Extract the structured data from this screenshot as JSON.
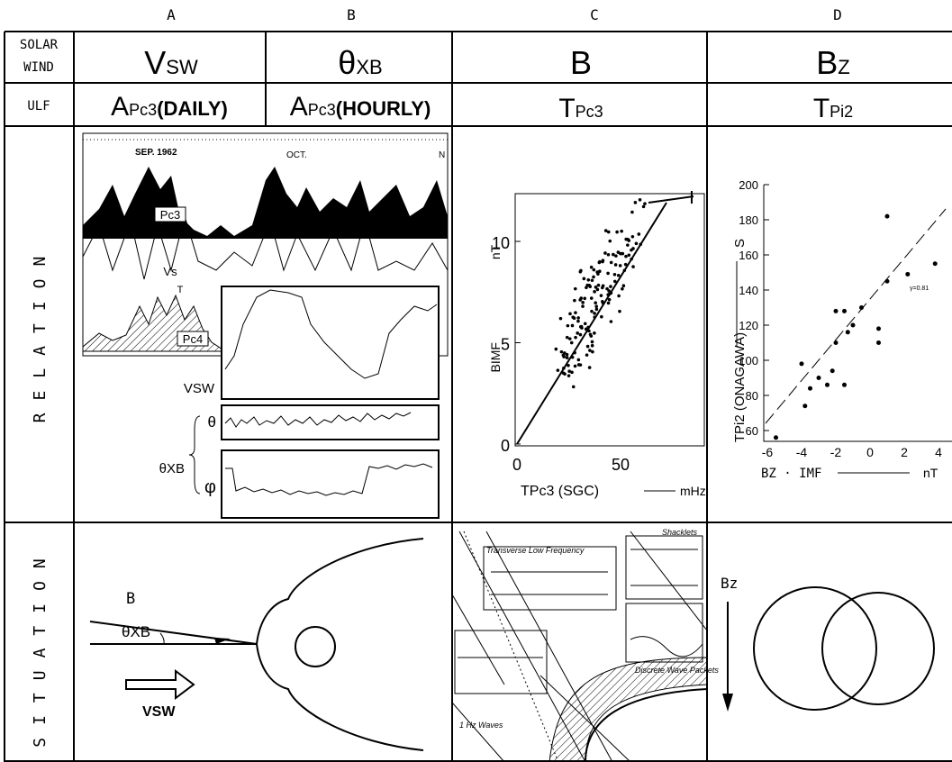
{
  "columns": [
    "A",
    "B",
    "C",
    "D"
  ],
  "row_labels": {
    "solar_wind": [
      "SOLAR",
      "WIND"
    ],
    "ulf": "ULF",
    "relation": "RELATION",
    "situation": "SITUATION"
  },
  "solar_wind": [
    {
      "main": "V",
      "sub": "SW"
    },
    {
      "main": "θ",
      "sub": "XB"
    },
    {
      "main": "B"
    },
    {
      "main": "B",
      "sub": "Z"
    }
  ],
  "ulf": [
    {
      "main": "A",
      "sub": "Pc3",
      "note": "(DAILY)"
    },
    {
      "main": "A",
      "sub": "Pc3",
      "note": "(HOURLY)"
    },
    {
      "main": "T",
      "sub": "Pc3"
    },
    {
      "main": "T",
      "sub": "Pi2"
    }
  ],
  "relation_a": {
    "months": [
      "SEP. 1962",
      "OCT.",
      "N"
    ],
    "pc3": "Pc3",
    "vs": "Vs",
    "t": "T",
    "pc4": "Pc4",
    "vsw": "VSW",
    "theta_xb": "θXB",
    "theta": "θ",
    "phi": "φ"
  },
  "relation_c": {
    "yticks": [
      0,
      5,
      10
    ],
    "xticks": [
      0,
      50
    ],
    "ylabel": "BIMF",
    "yunit": "nT",
    "xlabel": "TPc3 (SGC)",
    "xunit": "mHz"
  },
  "relation_d": {
    "yticks": [
      60,
      80,
      100,
      120,
      140,
      160,
      180,
      200
    ],
    "xticks": [
      -6,
      -4,
      -2,
      0,
      2,
      4
    ],
    "ylabel": "TPi2 (ONAGAWA)",
    "yunit": "S",
    "xlabel": "BZ · IMF",
    "xunit": "nT",
    "corr": "γ=0.81"
  },
  "situation_a": {
    "b": "B",
    "theta": "θXB",
    "vsw": "VSW"
  },
  "situation_c": [
    "Transverse Low Frequency",
    "Shacklets",
    "Discrete Wave Packets",
    "1 Hz Waves"
  ],
  "situation_d": {
    "bz": "Bz"
  }
}
